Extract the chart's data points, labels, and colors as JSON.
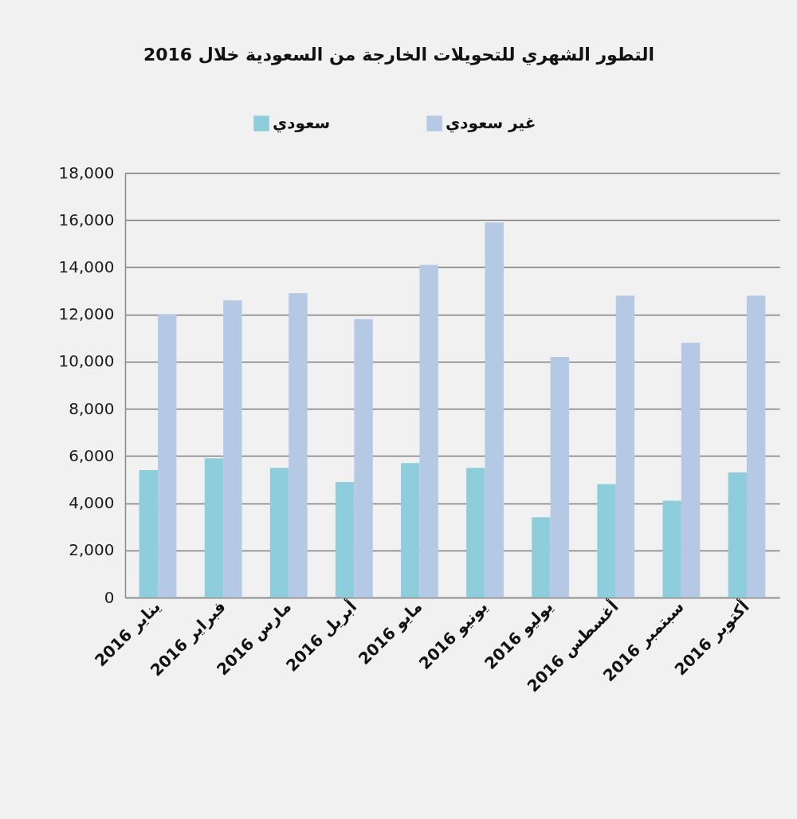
{
  "chart_data": {
    "type": "bar",
    "title": "التطور الشهري للتحويلات الخارجة من السعودية خلال 2016",
    "categories": [
      "يناير 2016",
      "فبراير 2016",
      "مارس 2016",
      "أبريل 2016",
      "مايو 2016",
      "يونيو 2016",
      "يوليو 2016",
      "أغسطس 2016",
      "سبتمبر 2016",
      "أكتوبر 2016"
    ],
    "series": [
      {
        "name": "سعودي",
        "color": "#8ecddc",
        "values": [
          5400,
          5900,
          5500,
          4900,
          5700,
          5500,
          3400,
          4800,
          4100,
          5300
        ]
      },
      {
        "name": "غير سعودي",
        "color": "#b5c9e5",
        "values": [
          12000,
          12600,
          12900,
          11800,
          14100,
          15900,
          10200,
          12800,
          10800,
          12800
        ]
      }
    ],
    "ylim": [
      0,
      18000
    ],
    "yticks": [
      0,
      {
        "value": 2000,
        "label": "2,000"
      },
      {
        "value": 4000,
        "label": "4,000"
      },
      {
        "value": 6000,
        "label": "6,000"
      },
      {
        "value": 8000,
        "label": "8,000"
      },
      {
        "value": 10000,
        "label": "10,000"
      },
      {
        "value": 12000,
        "label": "12,000"
      },
      {
        "value": 14000,
        "label": "14,000"
      },
      {
        "value": 16000,
        "label": "16,000"
      },
      {
        "value": 18000,
        "label": "18,000"
      }
    ],
    "grid": "y",
    "legend": "top"
  }
}
